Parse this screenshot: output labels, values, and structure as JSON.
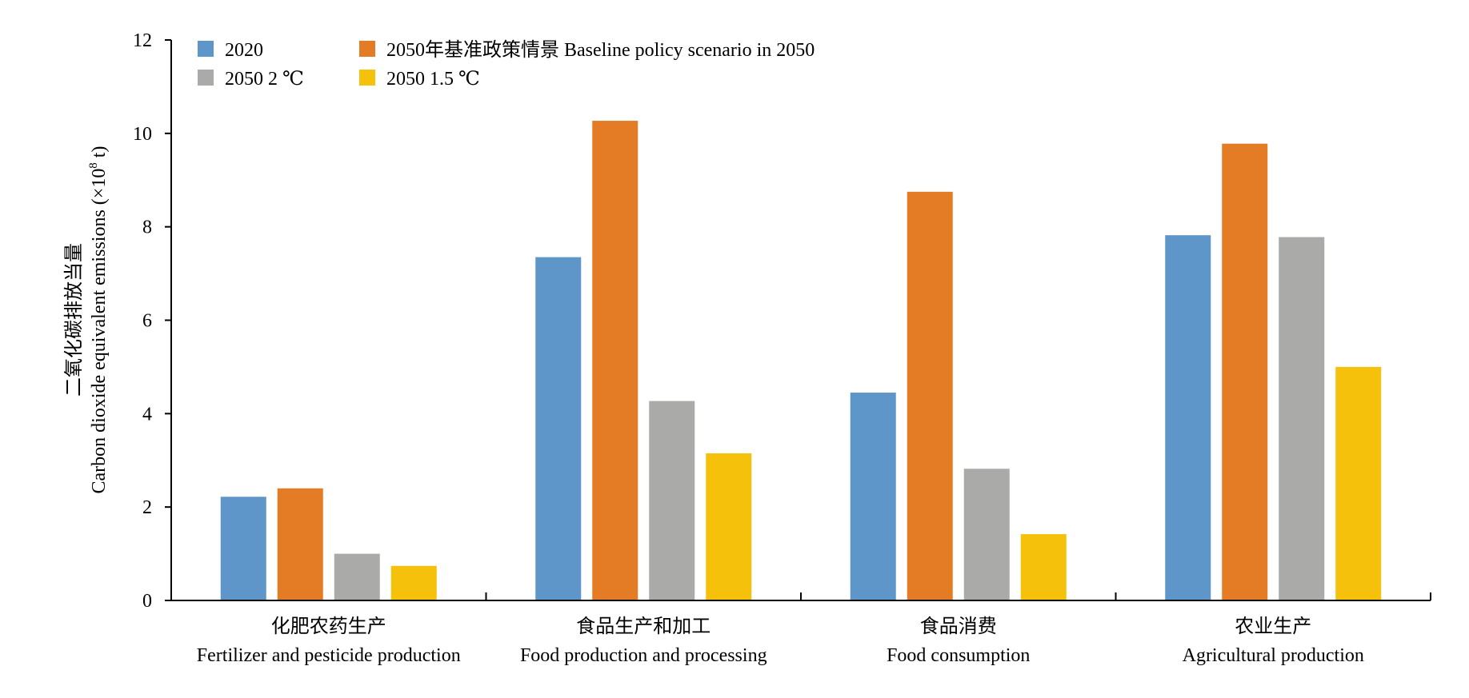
{
  "chart_data": {
    "type": "bar",
    "title": "",
    "ylabel": {
      "zh": "二氧化碳排放当量",
      "en": "Carbon dioxide equivalent emissions (×10",
      "sup": "8",
      "unit": " t)"
    },
    "xlabel": "",
    "ylim": [
      0,
      12
    ],
    "yticks": [
      0,
      2,
      4,
      6,
      8,
      10,
      12
    ],
    "grid": false,
    "legend_position": "top-left",
    "categories": [
      {
        "zh": "化肥农药生产",
        "en": "Fertilizer and pesticide production"
      },
      {
        "zh": "食品生产和加工",
        "en": "Food production and processing"
      },
      {
        "zh": "食品消费",
        "en": "Food consumption"
      },
      {
        "zh": "农业生产",
        "en": "Agricultural production"
      }
    ],
    "series": [
      {
        "name": "2020",
        "color": "#5F96C9",
        "values": [
          2.22,
          7.35,
          4.45,
          7.82
        ]
      },
      {
        "name": "2050年基准政策情景 Baseline policy scenario in 2050",
        "color": "#E47B25",
        "values": [
          2.4,
          10.27,
          8.75,
          9.78
        ]
      },
      {
        "name": "2050 2 ℃",
        "color": "#AAAAA8",
        "values": [
          1.0,
          4.27,
          2.82,
          7.78
        ]
      },
      {
        "name": "2050 1.5 ℃",
        "color": "#F5C10A",
        "values": [
          0.74,
          3.15,
          1.42,
          5.0
        ]
      }
    ]
  }
}
